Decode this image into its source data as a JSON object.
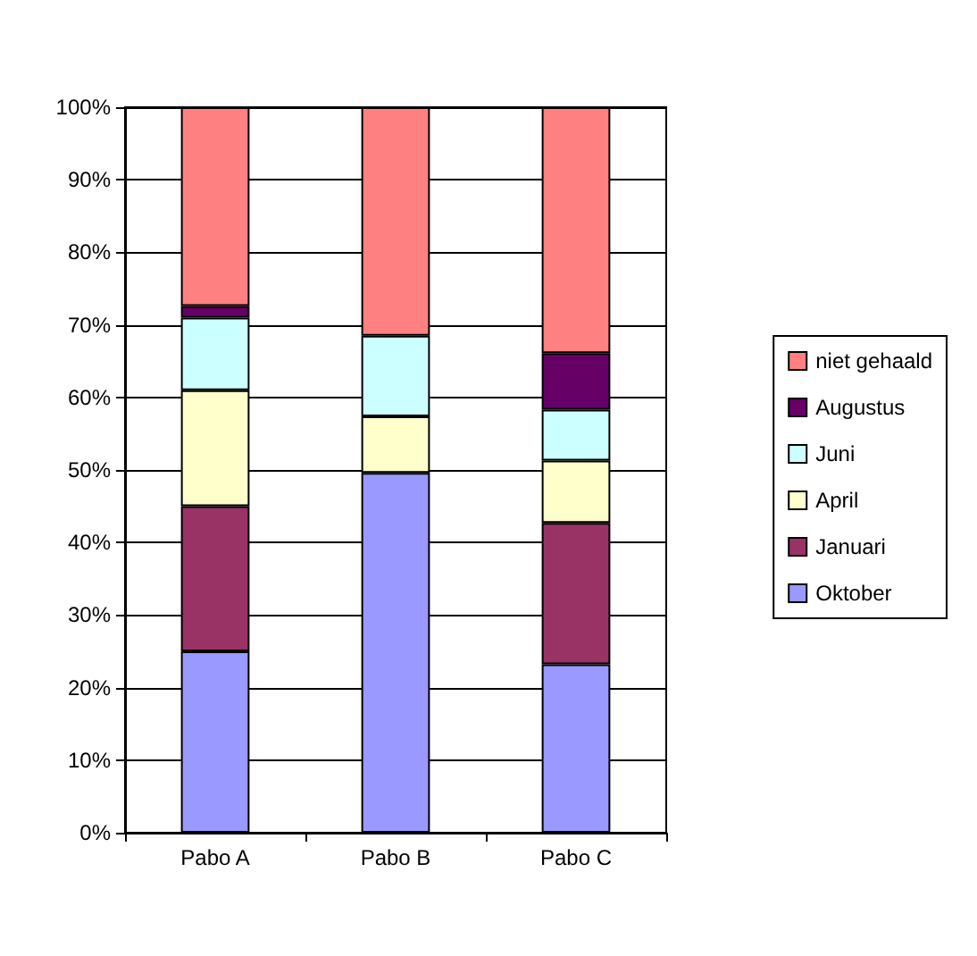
{
  "chart_data": {
    "type": "bar",
    "stacked": true,
    "categories": [
      "Pabo A",
      "Pabo B",
      "Pabo C"
    ],
    "series": [
      {
        "name": "Oktober",
        "color": "#9999ff",
        "values": [
          25.0,
          49.6,
          23.2
        ]
      },
      {
        "name": "Januari",
        "color": "#993366",
        "values": [
          20.0,
          null,
          19.5
        ]
      },
      {
        "name": "April",
        "color": "#ffffcc",
        "values": [
          16.0,
          7.8,
          8.6
        ]
      },
      {
        "name": "Juni",
        "color": "#ccffff",
        "values": [
          10.0,
          11.1,
          7.0
        ]
      },
      {
        "name": "Augustus",
        "color": "#660066",
        "values": [
          1.6,
          null,
          7.8
        ]
      },
      {
        "name": "niet gehaald",
        "color": "#ff8080",
        "values": [
          27.4,
          31.5,
          33.9
        ]
      }
    ],
    "ylim": [
      0,
      100
    ],
    "yticks": [
      {
        "value": 0,
        "label": "0%"
      },
      {
        "value": 10,
        "label": "10%"
      },
      {
        "value": 20,
        "label": "20%"
      },
      {
        "value": 30,
        "label": "30%"
      },
      {
        "value": 40,
        "label": "40%"
      },
      {
        "value": 50,
        "label": "50%"
      },
      {
        "value": 60,
        "label": "60%"
      },
      {
        "value": 70,
        "label": "70%"
      },
      {
        "value": 80,
        "label": "80%"
      },
      {
        "value": 90,
        "label": "90%"
      },
      {
        "value": 100,
        "label": "100%"
      }
    ],
    "grid": "y",
    "legend": "right"
  }
}
